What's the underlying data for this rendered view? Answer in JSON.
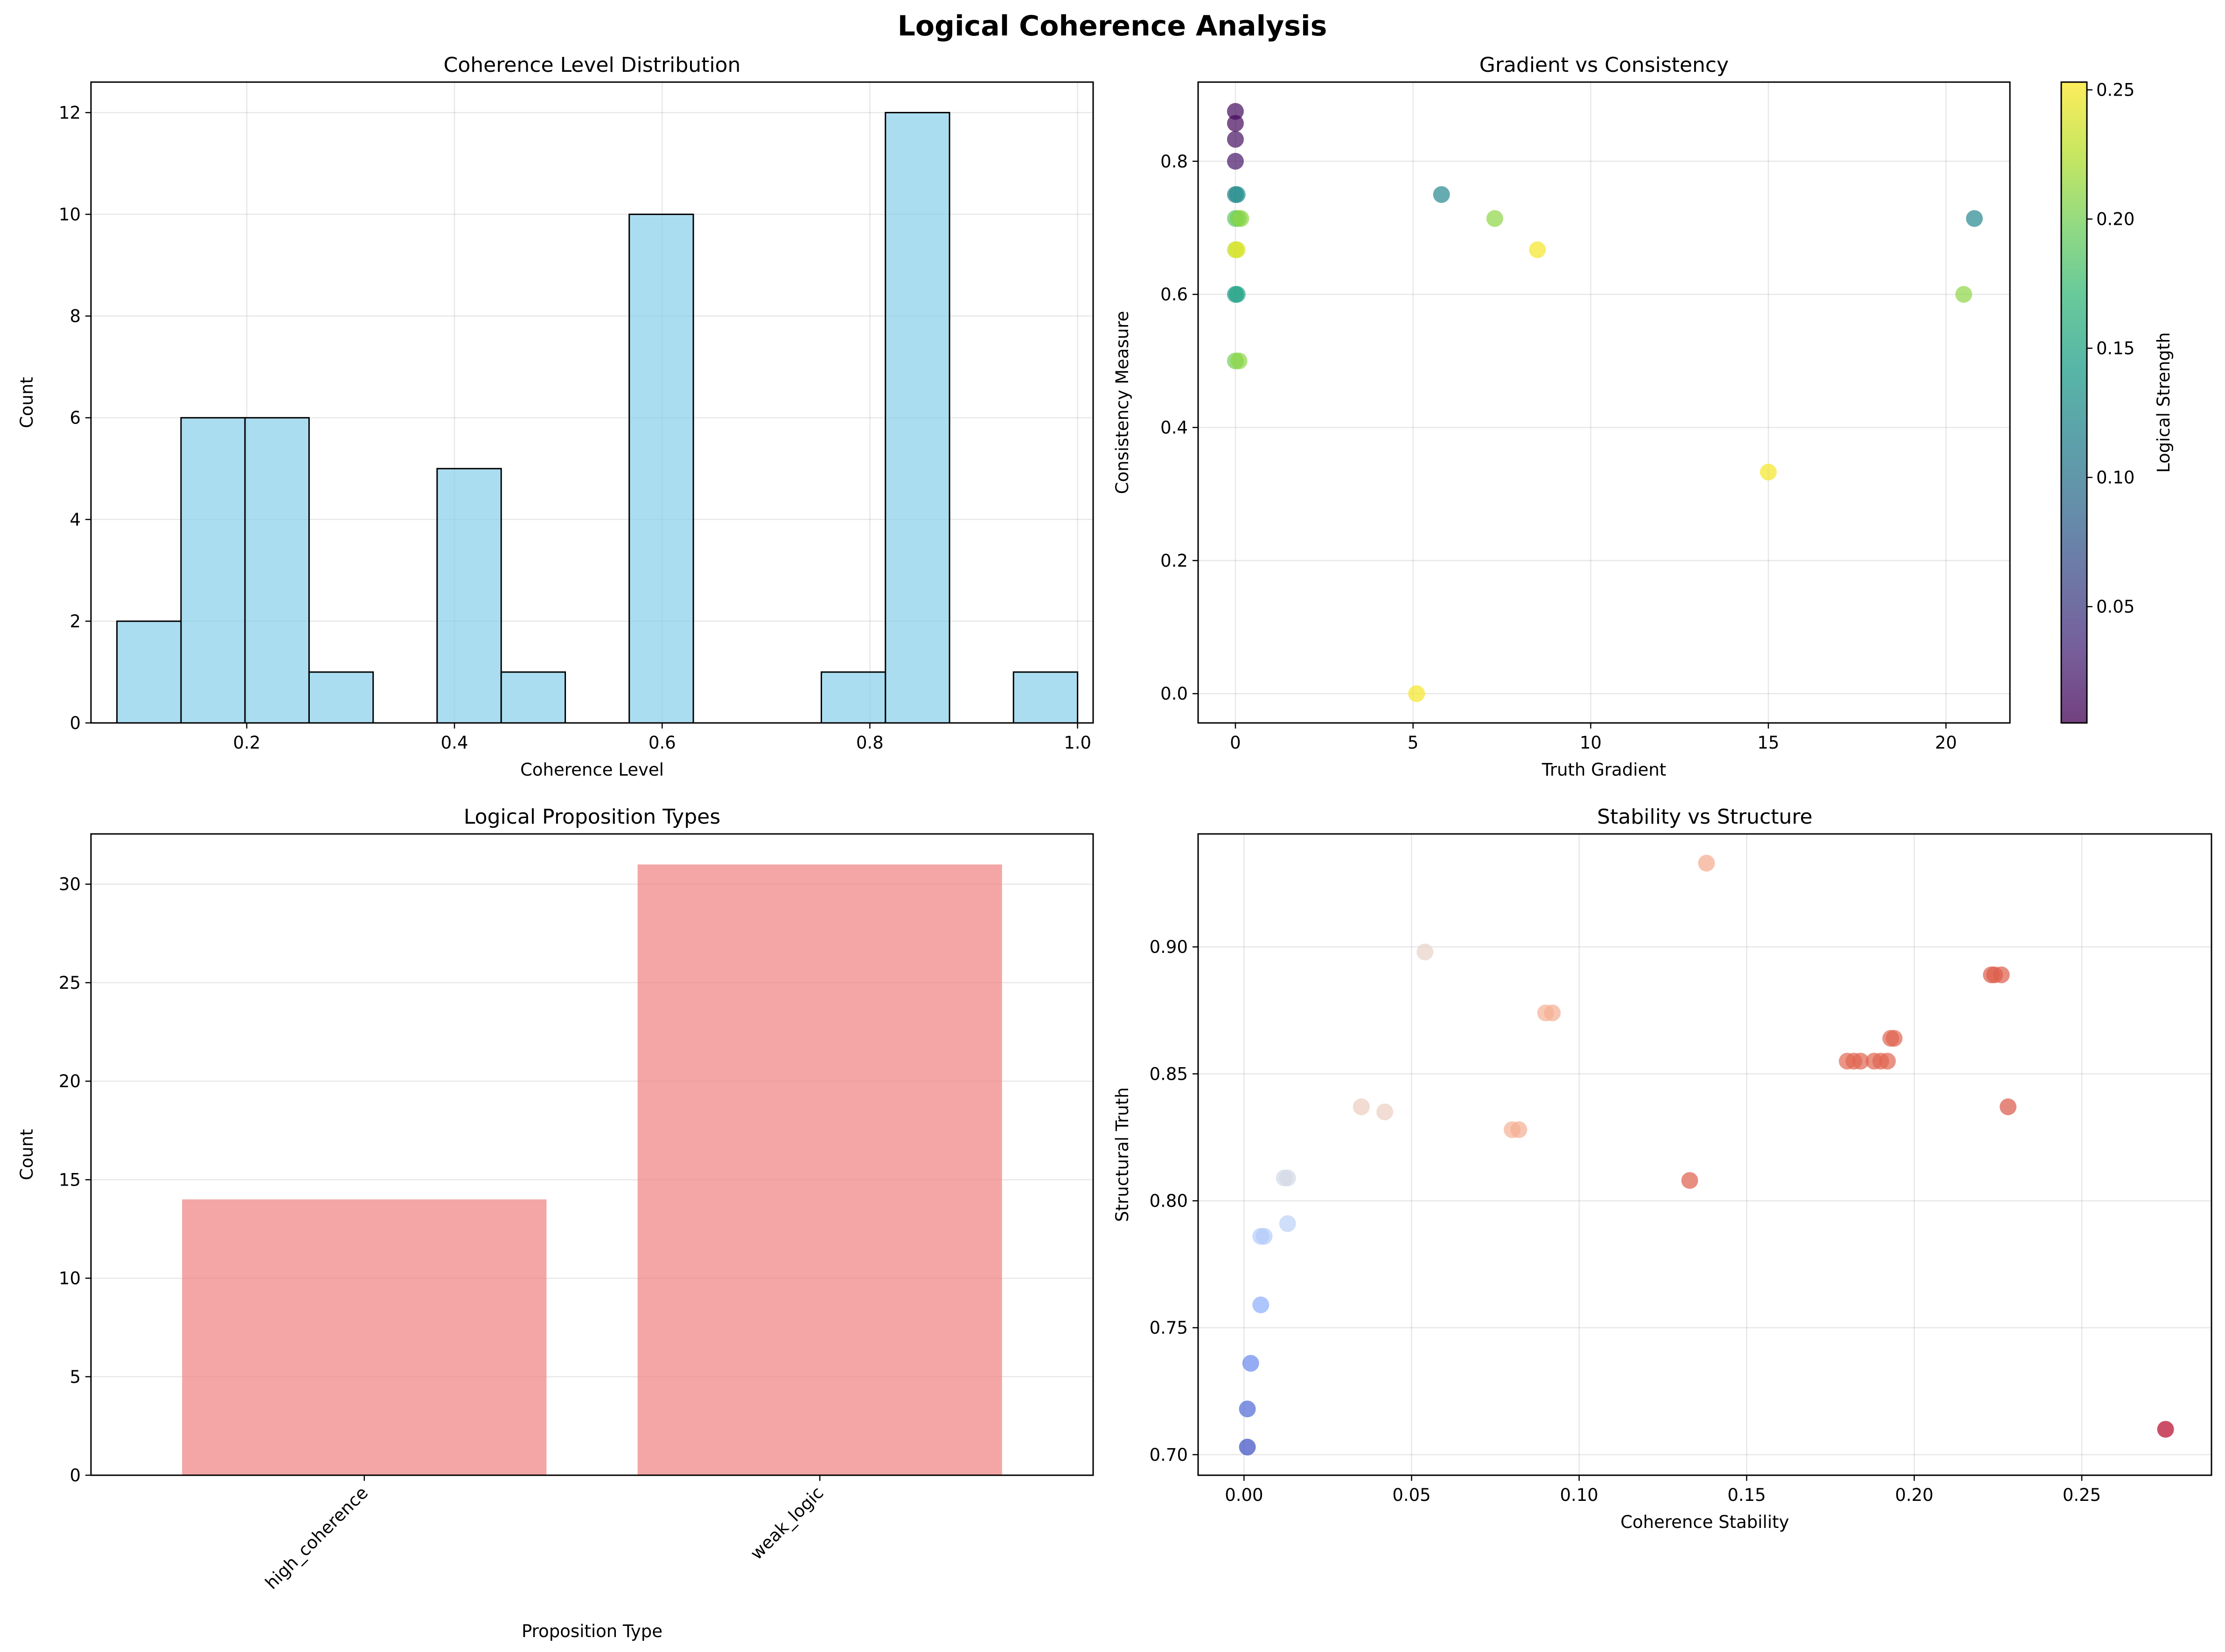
{
  "figure_title": "Logical Coherence Analysis",
  "chart_data": [
    {
      "id": "hist",
      "type": "bar",
      "title": "Coherence Level Distribution",
      "xlabel": "Coherence Level",
      "ylabel": "Count",
      "xlim": [
        0.05,
        1.015
      ],
      "ylim": [
        0,
        12.6
      ],
      "xticks": [
        0.2,
        0.4,
        0.6,
        0.8,
        1.0
      ],
      "xtick_labels": [
        "0.2",
        "0.4",
        "0.6",
        "0.8",
        "1.0"
      ],
      "yticks": [
        0,
        2,
        4,
        6,
        8,
        10,
        12
      ],
      "ytick_labels": [
        "0",
        "2",
        "4",
        "6",
        "8",
        "10",
        "12"
      ],
      "bin_edges": [
        0.075,
        0.1367,
        0.1983,
        0.26,
        0.3217,
        0.3833,
        0.445,
        0.5067,
        0.5683,
        0.63,
        0.6917,
        0.7533,
        0.815,
        0.8767,
        0.9383,
        1.0
      ],
      "counts": [
        2,
        6,
        6,
        1,
        0,
        5,
        1,
        0,
        10,
        0,
        0,
        1,
        12,
        0,
        1
      ],
      "color": "#87CEEB",
      "edge_color": "#000000",
      "grid": true
    },
    {
      "id": "scatter1",
      "type": "scatter",
      "title": "Gradient vs Consistency",
      "xlabel": "Truth Gradient",
      "ylabel": "Consistency Measure",
      "xlim": [
        -1.05,
        21.8
      ],
      "ylim": [
        -0.044,
        0.919
      ],
      "xticks": [
        0,
        5,
        10,
        15,
        20
      ],
      "xtick_labels": [
        "0",
        "5",
        "10",
        "15",
        "20"
      ],
      "yticks": [
        0.0,
        0.2,
        0.4,
        0.6,
        0.8
      ],
      "ytick_labels": [
        "0.0",
        "0.2",
        "0.4",
        "0.6",
        "0.8"
      ],
      "colorbar": {
        "label": "Logical Strength",
        "range": [
          0.005,
          0.253
        ],
        "ticks": [
          0.05,
          0.1,
          0.15,
          0.2,
          0.25
        ],
        "tick_labels": [
          "0.05",
          "0.10",
          "0.15",
          "0.20",
          "0.25"
        ],
        "colormap": "viridis"
      },
      "points": [
        {
          "x": 0.0,
          "y": 0.875,
          "c": 0.012
        },
        {
          "x": 0.0,
          "y": 0.857,
          "c": 0.01
        },
        {
          "x": 0.0,
          "y": 0.833,
          "c": 0.015
        },
        {
          "x": 0.0,
          "y": 0.8,
          "c": 0.02
        },
        {
          "x": 0.0,
          "y": 0.75,
          "c": 0.11
        },
        {
          "x": 0.05,
          "y": 0.75,
          "c": 0.13
        },
        {
          "x": 0.0,
          "y": 0.714,
          "c": 0.19
        },
        {
          "x": 0.08,
          "y": 0.714,
          "c": 0.2
        },
        {
          "x": 0.15,
          "y": 0.714,
          "c": 0.21
        },
        {
          "x": 0.0,
          "y": 0.667,
          "c": 0.23
        },
        {
          "x": 0.05,
          "y": 0.667,
          "c": 0.24
        },
        {
          "x": 0.0,
          "y": 0.6,
          "c": 0.14
        },
        {
          "x": 0.05,
          "y": 0.6,
          "c": 0.15
        },
        {
          "x": 0.0,
          "y": 0.5,
          "c": 0.2
        },
        {
          "x": 0.1,
          "y": 0.5,
          "c": 0.21
        },
        {
          "x": 5.8,
          "y": 0.75,
          "c": 0.12
        },
        {
          "x": 7.3,
          "y": 0.714,
          "c": 0.21
        },
        {
          "x": 8.5,
          "y": 0.667,
          "c": 0.25
        },
        {
          "x": 20.8,
          "y": 0.714,
          "c": 0.12
        },
        {
          "x": 20.5,
          "y": 0.6,
          "c": 0.21
        },
        {
          "x": 15.0,
          "y": 0.333,
          "c": 0.25
        },
        {
          "x": 5.1,
          "y": 0.0,
          "c": 0.25
        }
      ],
      "grid": true
    },
    {
      "id": "bars",
      "type": "bar",
      "title": "Logical Proposition Types",
      "xlabel": "Proposition Type",
      "ylabel": "Count",
      "ylim": [
        0,
        32.55
      ],
      "categories": [
        "high_coherence",
        "weak_logic"
      ],
      "values": [
        14,
        31
      ],
      "yticks": [
        0,
        5,
        10,
        15,
        20,
        25,
        30
      ],
      "ytick_labels": [
        "0",
        "5",
        "10",
        "15",
        "20",
        "25",
        "30"
      ],
      "color": "#F08080",
      "grid": true
    },
    {
      "id": "scatter2",
      "type": "scatter",
      "title": "Stability vs Structure",
      "xlabel": "Coherence Stability",
      "ylabel": "Structural Truth",
      "xlim": [
        -0.0137,
        0.2887
      ],
      "ylim": [
        0.6919,
        0.9445
      ],
      "xticks": [
        0.0,
        0.05,
        0.1,
        0.15,
        0.2,
        0.25
      ],
      "xtick_labels": [
        "0.00",
        "0.05",
        "0.10",
        "0.15",
        "0.20",
        "0.25"
      ],
      "yticks": [
        0.7,
        0.75,
        0.8,
        0.85,
        0.9
      ],
      "ytick_labels": [
        "0.70",
        "0.75",
        "0.80",
        "0.85",
        "0.90"
      ],
      "colormap": "coolwarm",
      "color_range": [
        0.703,
        0.933
      ],
      "points": [
        {
          "x": 0.001,
          "y": 0.703,
          "c": 0.703
        },
        {
          "x": 0.001,
          "y": 0.718,
          "c": 0.718
        },
        {
          "x": 0.002,
          "y": 0.736,
          "c": 0.736
        },
        {
          "x": 0.005,
          "y": 0.759,
          "c": 0.759
        },
        {
          "x": 0.005,
          "y": 0.786,
          "c": 0.786
        },
        {
          "x": 0.006,
          "y": 0.786,
          "c": 0.786
        },
        {
          "x": 0.012,
          "y": 0.809,
          "c": 0.809
        },
        {
          "x": 0.013,
          "y": 0.809,
          "c": 0.809
        },
        {
          "x": 0.013,
          "y": 0.791,
          "c": 0.791
        },
        {
          "x": 0.035,
          "y": 0.837,
          "c": 0.837
        },
        {
          "x": 0.042,
          "y": 0.835,
          "c": 0.835
        },
        {
          "x": 0.054,
          "y": 0.898,
          "c": 0.83
        },
        {
          "x": 0.08,
          "y": 0.828,
          "c": 0.86
        },
        {
          "x": 0.082,
          "y": 0.828,
          "c": 0.862
        },
        {
          "x": 0.09,
          "y": 0.874,
          "c": 0.86
        },
        {
          "x": 0.092,
          "y": 0.874,
          "c": 0.862
        },
        {
          "x": 0.138,
          "y": 0.933,
          "c": 0.865
        },
        {
          "x": 0.133,
          "y": 0.808,
          "c": 0.905
        },
        {
          "x": 0.18,
          "y": 0.855,
          "c": 0.9
        },
        {
          "x": 0.182,
          "y": 0.855,
          "c": 0.902
        },
        {
          "x": 0.184,
          "y": 0.855,
          "c": 0.902
        },
        {
          "x": 0.188,
          "y": 0.855,
          "c": 0.902
        },
        {
          "x": 0.19,
          "y": 0.855,
          "c": 0.902
        },
        {
          "x": 0.192,
          "y": 0.855,
          "c": 0.902
        },
        {
          "x": 0.193,
          "y": 0.864,
          "c": 0.902
        },
        {
          "x": 0.194,
          "y": 0.864,
          "c": 0.902
        },
        {
          "x": 0.223,
          "y": 0.889,
          "c": 0.905
        },
        {
          "x": 0.224,
          "y": 0.889,
          "c": 0.905
        },
        {
          "x": 0.226,
          "y": 0.889,
          "c": 0.905
        },
        {
          "x": 0.228,
          "y": 0.837,
          "c": 0.907
        },
        {
          "x": 0.275,
          "y": 0.71,
          "c": 0.933
        }
      ],
      "grid": true
    }
  ]
}
